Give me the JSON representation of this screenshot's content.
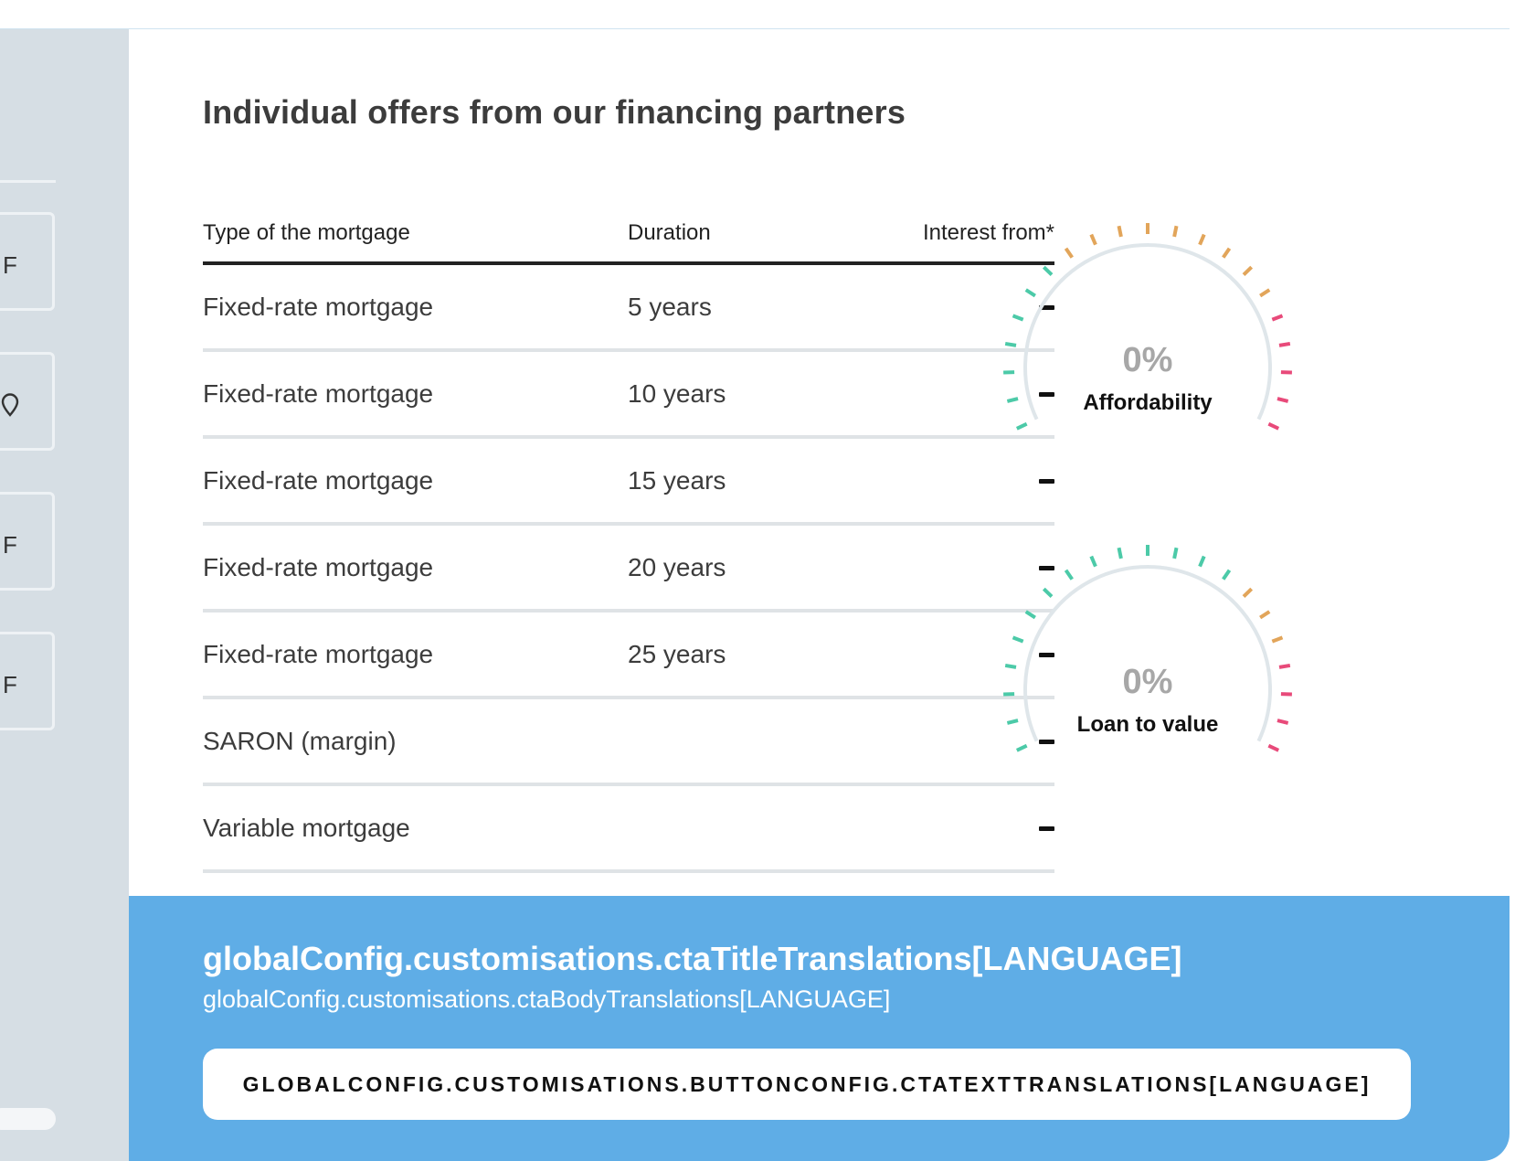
{
  "sidebar": {
    "cards": [
      {
        "letter": "F"
      },
      {
        "icon": "location-pin-icon"
      },
      {
        "letter": "F"
      },
      {
        "letter": "F"
      }
    ]
  },
  "offers": {
    "title": "Individual offers from our financing partners",
    "columns": {
      "type": "Type of the mortgage",
      "duration": "Duration",
      "interest": "Interest from*"
    },
    "rows": [
      {
        "type": "Fixed-rate mortgage",
        "duration": "5 years",
        "interest": "–"
      },
      {
        "type": "Fixed-rate mortgage",
        "duration": "10 years",
        "interest": "–"
      },
      {
        "type": "Fixed-rate mortgage",
        "duration": "15 years",
        "interest": "–"
      },
      {
        "type": "Fixed-rate mortgage",
        "duration": "20 years",
        "interest": "–"
      },
      {
        "type": "Fixed-rate mortgage",
        "duration": "25 years",
        "interest": "–"
      },
      {
        "type": "SARON (margin)",
        "duration": "",
        "interest": "–"
      },
      {
        "type": "Variable mortgage",
        "duration": "",
        "interest": "–"
      }
    ]
  },
  "gauges": {
    "affordability": {
      "value": "0%",
      "label": "Affordability",
      "zones": {
        "green": 7,
        "orange": 9,
        "red": 5
      }
    },
    "loan_to_value": {
      "value": "0%",
      "label": "Loan to value",
      "zones": {
        "green": 14,
        "orange": 3,
        "red": 4
      }
    }
  },
  "colors": {
    "green": "#4ccaa8",
    "orange": "#e2a55a",
    "red": "#e84a7a",
    "arc": "#dfe6ea",
    "cta": "#5fade6"
  },
  "cta": {
    "title": "globalConfig.customisations.ctaTitleTranslations[LANGUAGE]",
    "body": "globalConfig.customisations.ctaBodyTranslations[LANGUAGE]",
    "button": "GLOBALCONFIG.CUSTOMISATIONS.BUTTONCONFIG.CTATEXTTRANSLATIONS[LANGUAGE]"
  }
}
